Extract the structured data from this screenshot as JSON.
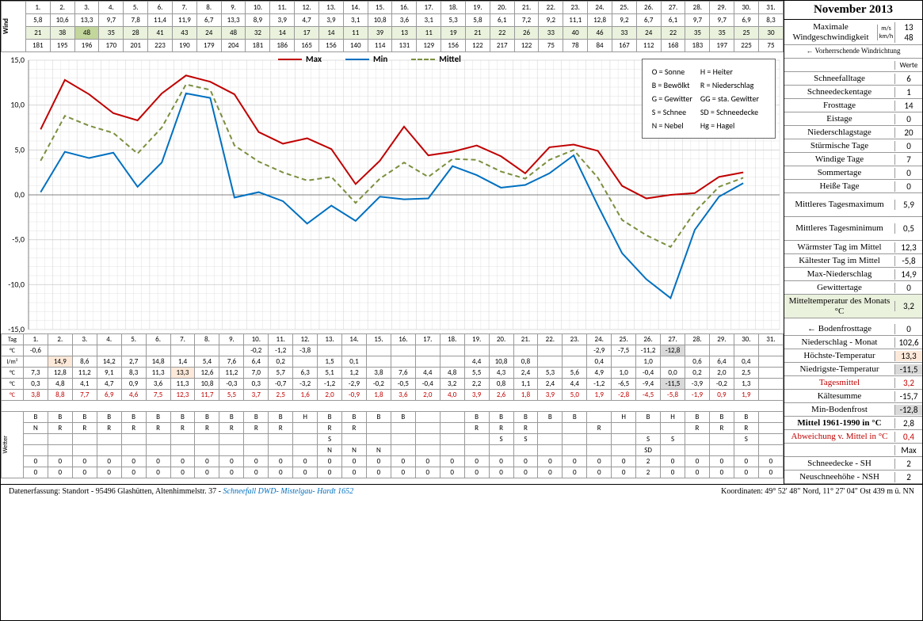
{
  "title": "November 2013",
  "days": [
    1,
    2,
    3,
    4,
    5,
    6,
    7,
    8,
    9,
    10,
    11,
    12,
    13,
    14,
    15,
    16,
    17,
    18,
    19,
    20,
    21,
    22,
    23,
    24,
    25,
    26,
    27,
    28,
    29,
    30,
    31
  ],
  "wind_ms": [
    "5,8",
    "10,6",
    "13,3",
    "9,7",
    "7,8",
    "11,4",
    "11,9",
    "6,7",
    "13,3",
    "8,9",
    "3,9",
    "4,7",
    "3,9",
    "3,1",
    "10,8",
    "3,6",
    "3,1",
    "5,3",
    "5,8",
    "6,1",
    "7,2",
    "9,2",
    "11,1",
    "12,8",
    "9,2",
    "6,7",
    "6,1",
    "9,7",
    "9,7",
    "6,9",
    "8,3"
  ],
  "wind_kmh": [
    21,
    38,
    48,
    35,
    28,
    41,
    43,
    24,
    48,
    32,
    14,
    17,
    14,
    11,
    39,
    13,
    11,
    19,
    21,
    22,
    26,
    33,
    40,
    46,
    33,
    24,
    22,
    35,
    35,
    25,
    30
  ],
  "wind_dir": [
    181,
    195,
    196,
    170,
    201,
    223,
    190,
    179,
    204,
    181,
    186,
    165,
    156,
    140,
    114,
    131,
    129,
    156,
    122,
    217,
    122,
    75,
    78,
    84,
    167,
    112,
    168,
    183,
    197,
    225,
    75
  ],
  "kmh_green": [
    2
  ],
  "chart": {
    "ymin": -15,
    "ymax": 15,
    "ystep": 5,
    "max_color": "#c00000",
    "min_color": "#0070c0",
    "mittel_color": "#7b8f3e",
    "grid_color": "#d0d0d0",
    "axis_color": "#808080",
    "max": [
      7.3,
      12.8,
      11.2,
      9.1,
      8.3,
      11.3,
      13.3,
      12.6,
      11.2,
      7.0,
      5.7,
      6.3,
      5.1,
      1.2,
      3.8,
      7.6,
      4.4,
      4.8,
      5.5,
      4.3,
      2.4,
      5.3,
      5.6,
      4.9,
      1.0,
      -0.4,
      0.0,
      0.2,
      2.0,
      2.5,
      null
    ],
    "min": [
      0.3,
      4.8,
      4.1,
      4.7,
      0.9,
      3.6,
      11.3,
      10.8,
      -0.3,
      0.3,
      -0.7,
      -3.2,
      -1.2,
      -2.9,
      -0.2,
      -0.5,
      -0.4,
      3.2,
      2.2,
      0.8,
      1.1,
      2.4,
      4.4,
      -1.2,
      -6.5,
      -9.4,
      -11.5,
      -3.9,
      -0.2,
      1.3,
      null
    ],
    "mittel": [
      3.8,
      8.8,
      7.7,
      6.9,
      4.6,
      7.5,
      12.3,
      11.7,
      5.5,
      3.7,
      2.5,
      1.6,
      2.0,
      -0.9,
      1.8,
      3.6,
      2.0,
      4.0,
      3.9,
      2.6,
      1.8,
      3.9,
      5.0,
      1.9,
      -2.8,
      -4.5,
      -5.8,
      -1.9,
      0.9,
      1.9,
      null
    ]
  },
  "legend_items": [
    [
      "O = Sonne",
      "H = Heiter"
    ],
    [
      "B = Bewölkt",
      "R = Niederschlag"
    ],
    [
      "G = Gewitter",
      "GG = sta. Gewitter"
    ],
    [
      "S = Schnee",
      "SD = Schneedecke"
    ],
    [
      "N = Nebel",
      "Hg = Hagel"
    ]
  ],
  "chart_legend": [
    "Max",
    "Min",
    "Mittel"
  ],
  "stats_header_right": {
    "ms": "m/s",
    "kmh": "km/h",
    "arrow": "← Vorherrschende Windrichtung",
    "werte": "Werte"
  },
  "stats": [
    {
      "l": "Maximale Windgeschwindigkeit",
      "v1": "13",
      "v2": "48",
      "tall": true
    },
    {
      "l": "Schneefalltage",
      "v": "6"
    },
    {
      "l": "Schneedeckentage",
      "v": "1"
    },
    {
      "l": "Frosttage",
      "v": "14"
    },
    {
      "l": "Eistage",
      "v": "0"
    },
    {
      "l": "Niederschlagstage",
      "v": "20"
    },
    {
      "l": "Stürmische Tage",
      "v": "0"
    },
    {
      "l": "Windige Tage",
      "v": "7"
    },
    {
      "l": "Sommertage",
      "v": "0"
    },
    {
      "l": "Heiße Tage",
      "v": "0"
    },
    {
      "l": "Mittleres Tagesmaximum",
      "v": "5,9",
      "tall": true
    },
    {
      "l": "Mittleres Tagesminimum",
      "v": "0,5",
      "tall": true
    },
    {
      "l": "Wärmster Tag im Mittel",
      "v": "12,3"
    },
    {
      "l": "Kältester Tag im Mittel",
      "v": "-5,8"
    },
    {
      "l": "Max-Niederschlag",
      "v": "14,9"
    },
    {
      "l": "Gewittertage",
      "v": "0"
    },
    {
      "l": "Mitteltemperatur des Monats °C",
      "v": "3,2",
      "green": true,
      "tall": true
    }
  ],
  "bottom_stats": [
    {
      "l": "← Bodenfrosttage",
      "v": "0"
    },
    {
      "l": "Niederschlag - Monat",
      "v": "102,6"
    },
    {
      "l": "Höchste-Temperatur",
      "v": "13,3",
      "hl": "hl-orange"
    },
    {
      "l": "Niedrigste-Temperatur",
      "v": "-11,5",
      "hl": "hl-gray"
    },
    {
      "l": "Tagesmittel",
      "v": "3,2",
      "red": true
    },
    {
      "l": "Kältesumme",
      "v": "-15,7"
    },
    {
      "l": "Min-Bodenfrost",
      "v": "-12,8",
      "hl": "hl-gray"
    },
    {
      "l": "Mittel 1961-1990 in °C",
      "v": "2,8",
      "bold": true
    },
    {
      "l": "Abweichung v. Mittel in °C",
      "v": "0,4",
      "red": true
    },
    {
      "l": "",
      "v": "Max",
      "bold": true
    },
    {
      "l": "Schneedecke - SH",
      "v": "2"
    },
    {
      "l": "Neuschneehöhe - NSH",
      "v": "2"
    }
  ],
  "bodenfrost": [
    "-0,6",
    "",
    "",
    "",
    "",
    "",
    "",
    "",
    "",
    "-0,2",
    "-1,2",
    "-3,8",
    "",
    "",
    "",
    "",
    "",
    "",
    "",
    "",
    "",
    "",
    "",
    "-2,9",
    "-7,5",
    "-11,2",
    "-12,8",
    "",
    "",
    "",
    ""
  ],
  "bodenfrost_hl": [
    26
  ],
  "niederschlag": [
    "",
    "14,9",
    "8,6",
    "14,2",
    "2,7",
    "14,8",
    "1,4",
    "5,4",
    "7,6",
    "6,4",
    "0,2",
    "",
    "1,5",
    "0,1",
    "",
    "",
    "",
    "",
    "4,4",
    "10,8",
    "0,8",
    "",
    "",
    "0,4",
    "",
    "1,0",
    "",
    "0,6",
    "6,4",
    "0,4",
    ""
  ],
  "nieder_hl": [
    1
  ],
  "hoechste": [
    "7,3",
    "12,8",
    "11,2",
    "9,1",
    "8,3",
    "11,3",
    "13,3",
    "12,6",
    "11,2",
    "7,0",
    "5,7",
    "6,3",
    "5,1",
    "1,2",
    "3,8",
    "7,6",
    "4,4",
    "4,8",
    "5,5",
    "4,3",
    "2,4",
    "5,3",
    "5,6",
    "4,9",
    "1,0",
    "-0,4",
    "0,0",
    "0,2",
    "2,0",
    "2,5",
    ""
  ],
  "hoechste_hl": [
    6
  ],
  "niedrigste": [
    "0,3",
    "4,8",
    "4,1",
    "4,7",
    "0,9",
    "3,6",
    "11,3",
    "10,8",
    "-0,3",
    "0,3",
    "-0,7",
    "-3,2",
    "-1,2",
    "-2,9",
    "-0,2",
    "-0,5",
    "-0,4",
    "3,2",
    "2,2",
    "0,8",
    "1,1",
    "2,4",
    "4,4",
    "-1,2",
    "-6,5",
    "-9,4",
    "-11,5",
    "-3,9",
    "-0,2",
    "1,3",
    ""
  ],
  "niedrigste_hl": [
    26
  ],
  "tagesmittel": [
    "3,8",
    "8,8",
    "7,7",
    "6,9",
    "4,6",
    "7,5",
    "12,3",
    "11,7",
    "5,5",
    "3,7",
    "2,5",
    "1,6",
    "2,0",
    "-0,9",
    "1,8",
    "3,6",
    "2,0",
    "4,0",
    "3,9",
    "2,6",
    "1,8",
    "3,9",
    "5,0",
    "1,9",
    "-2,8",
    "-4,5",
    "-5,8",
    "-1,9",
    "0,9",
    "1,9",
    ""
  ],
  "wetter_rows": [
    [
      "B",
      "B",
      "B",
      "B",
      "B",
      "B",
      "B",
      "B",
      "B",
      "B",
      "B",
      "H",
      "B",
      "B",
      "B",
      "B",
      "",
      "",
      "B",
      "B",
      "B",
      "B",
      "B",
      "",
      "H",
      "B",
      "H",
      "B",
      "B",
      "B",
      ""
    ],
    [
      "N",
      "R",
      "R",
      "R",
      "R",
      "R",
      "R",
      "R",
      "R",
      "R",
      "R",
      "",
      "R",
      "R",
      "",
      "",
      "",
      "",
      "R",
      "R",
      "R",
      "",
      "",
      "R",
      "",
      "",
      "",
      "R",
      "R",
      "R",
      ""
    ],
    [
      "",
      "",
      "",
      "",
      "",
      "",
      "",
      "",
      "",
      "",
      "",
      "",
      "S",
      "",
      "",
      "",
      "",
      "",
      "",
      "S",
      "S",
      "",
      "",
      "",
      "",
      "S",
      "S",
      "",
      "",
      "S",
      ""
    ],
    [
      "",
      "",
      "",
      "",
      "",
      "",
      "",
      "",
      "",
      "",
      "",
      "",
      "N",
      "N",
      "N",
      "",
      "",
      "",
      "",
      "",
      "",
      "",
      "",
      "",
      "",
      "SD",
      "",
      "",
      "",
      "",
      ""
    ],
    [
      0,
      0,
      0,
      0,
      0,
      0,
      0,
      0,
      0,
      0,
      0,
      0,
      0,
      0,
      0,
      0,
      0,
      0,
      0,
      0,
      0,
      0,
      0,
      0,
      0,
      2,
      0,
      0,
      0,
      0,
      0
    ],
    [
      0,
      0,
      0,
      0,
      0,
      0,
      0,
      0,
      0,
      0,
      0,
      0,
      0,
      0,
      0,
      0,
      0,
      0,
      0,
      0,
      0,
      0,
      0,
      0,
      0,
      2,
      0,
      0,
      0,
      0,
      0
    ]
  ],
  "row_labels": {
    "tag": "Tag",
    "c": "°C",
    "lm": "l/m²",
    "wetter": "Wetter"
  },
  "footer": {
    "left": "Datenerfassung: Standort - 95496 Glashütten, Altenhimmelstr. 37 - ",
    "link": "Schneefall DWD- Mistelgau- Hardt 1652",
    "right": "Koordinaten: 49° 52' 48\" Nord,  11° 27' 04\" Ost  439 m ü. NN"
  }
}
